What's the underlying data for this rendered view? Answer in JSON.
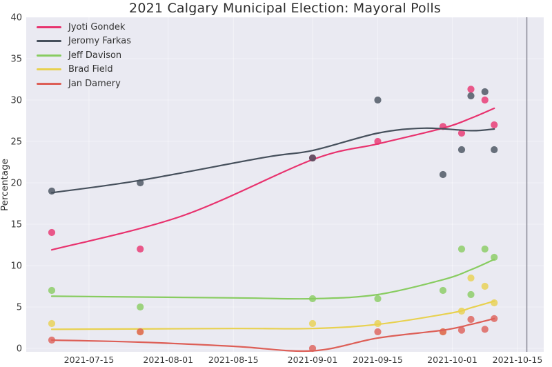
{
  "title": "2021 Calgary Municipal Election: Mayoral Polls",
  "chart_data": {
    "type": "scatter",
    "title": "2021 Calgary Municipal Election: Mayoral Polls",
    "xlabel": "",
    "ylabel": "Percentage",
    "ylim": [
      0,
      40
    ],
    "yticks": [
      0,
      5,
      10,
      15,
      20,
      25,
      30,
      35,
      40
    ],
    "x_tick_labels": [
      "2021-07-15",
      "2021-08-01",
      "2021-08-15",
      "2021-09-01",
      "2021-09-15",
      "2021-10-01",
      "2021-10-15"
    ],
    "legend_position": "upper left",
    "grid": "subtle white gridlines on light grey panel",
    "plot_background": "#eaeaf2",
    "election_line": {
      "date": "2021-10-17",
      "color": "#8d8d99"
    },
    "poll_dates": [
      "2021-07-07",
      "2021-07-26",
      "2021-09-01",
      "2021-09-15",
      "2021-09-29",
      "2021-10-03",
      "2021-10-05",
      "2021-10-08",
      "2021-10-10"
    ],
    "series": [
      {
        "name": "Jyoti Gondek",
        "color": "#e8326e",
        "values": [
          14,
          12,
          23,
          25,
          26.8,
          26,
          31.3,
          30,
          27
        ],
        "trend": {
          "dates": [
            "2021-07-07",
            "2021-08-04",
            "2021-09-01",
            "2021-09-15",
            "2021-09-29",
            "2021-10-05",
            "2021-10-10"
          ],
          "values": [
            11.9,
            16.0,
            22.8,
            24.7,
            26.6,
            27.8,
            29.0
          ]
        }
      },
      {
        "name": "Jeromy Farkas",
        "color": "#46505c",
        "values": [
          19,
          20,
          23,
          30,
          21,
          24,
          30.5,
          31,
          24
        ],
        "trend": {
          "dates": [
            "2021-07-07",
            "2021-07-26",
            "2021-08-22",
            "2021-09-01",
            "2021-09-15",
            "2021-09-25",
            "2021-10-05",
            "2021-10-10"
          ],
          "values": [
            18.8,
            20.3,
            23.1,
            23.9,
            26.0,
            26.6,
            26.3,
            26.5
          ]
        }
      },
      {
        "name": "Jeff Davison",
        "color": "#88cc60",
        "values": [
          7,
          5,
          6,
          6,
          7,
          12,
          6.5,
          12,
          11
        ],
        "trend": {
          "dates": [
            "2021-07-07",
            "2021-08-15",
            "2021-09-01",
            "2021-09-15",
            "2021-09-29",
            "2021-10-05",
            "2021-10-10"
          ],
          "values": [
            6.3,
            6.1,
            6.0,
            6.5,
            8.3,
            9.5,
            10.75
          ]
        }
      },
      {
        "name": "Brad Field",
        "color": "#e8d14f",
        "values": [
          3,
          2,
          3,
          3,
          2,
          4.5,
          8.5,
          7.5,
          5.5
        ],
        "trend": {
          "dates": [
            "2021-07-07",
            "2021-08-15",
            "2021-09-01",
            "2021-09-15",
            "2021-10-01",
            "2021-10-05",
            "2021-10-10"
          ],
          "values": [
            2.3,
            2.4,
            2.4,
            2.9,
            4.3,
            4.9,
            5.7
          ]
        }
      },
      {
        "name": "Jan Damery",
        "color": "#dd5f57",
        "values": [
          1,
          2,
          0,
          2,
          2,
          2.2,
          3.5,
          2.3,
          3.6
        ],
        "trend": {
          "dates": [
            "2021-07-07",
            "2021-07-26",
            "2021-08-15",
            "2021-09-01",
            "2021-09-15",
            "2021-09-29",
            "2021-10-05",
            "2021-10-10"
          ],
          "values": [
            1.0,
            0.75,
            0.25,
            -0.3,
            1.25,
            2.2,
            2.9,
            3.6
          ]
        }
      }
    ]
  }
}
